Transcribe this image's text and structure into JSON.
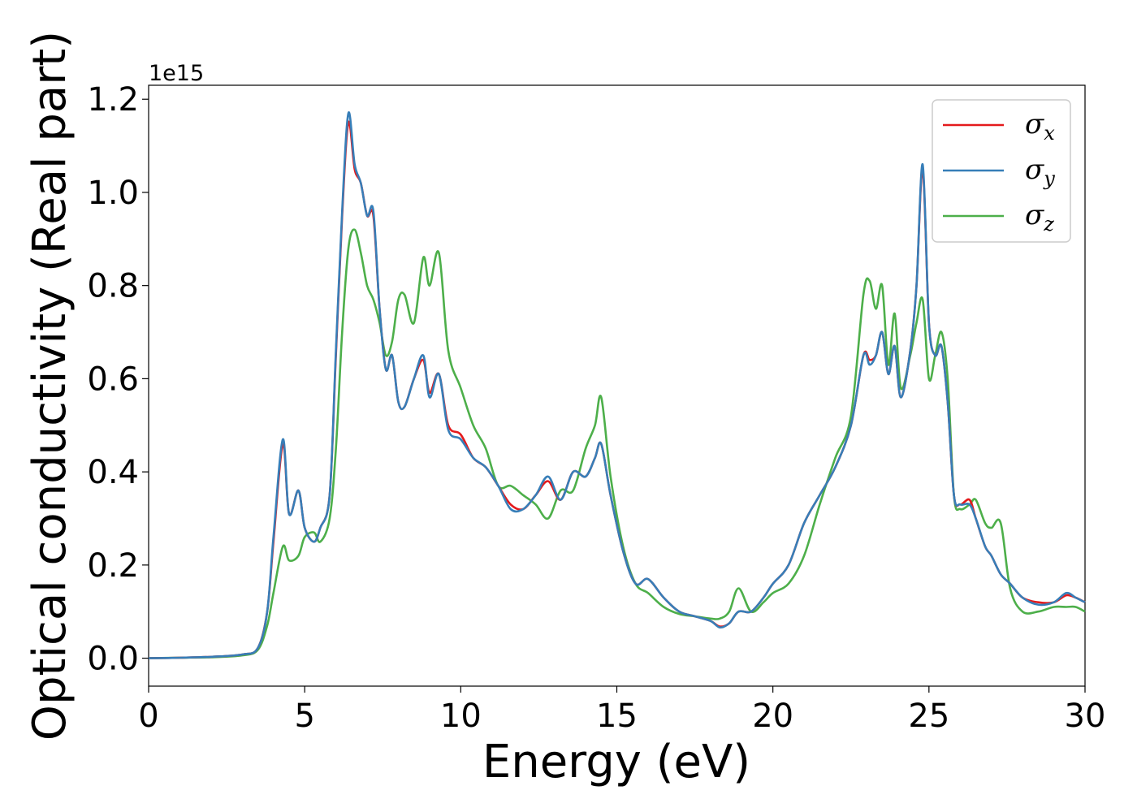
{
  "chart_data": {
    "type": "line",
    "xlabel": "Energy (eV)",
    "ylabel": "Optical conductivity (Real part)",
    "y_offset_label": "1e15",
    "xlim": [
      0,
      30
    ],
    "ylim": [
      -0.06,
      1.23
    ],
    "x_ticks": [
      0,
      5,
      10,
      15,
      20,
      25,
      30
    ],
    "y_ticks": [
      0.0,
      0.2,
      0.4,
      0.6,
      0.8,
      1.0,
      1.2
    ],
    "x_tick_labels": [
      "0",
      "5",
      "10",
      "15",
      "20",
      "25",
      "30"
    ],
    "y_tick_labels": [
      "0.0",
      "0.2",
      "0.4",
      "0.6",
      "0.8",
      "1.0",
      "1.2"
    ],
    "grid": false,
    "legend_position": "top-right",
    "x": [
      0,
      1,
      2,
      3,
      3.5,
      3.8,
      4.0,
      4.3,
      4.5,
      4.8,
      5.0,
      5.3,
      5.5,
      5.8,
      6.0,
      6.2,
      6.4,
      6.6,
      6.8,
      7.0,
      7.2,
      7.4,
      7.6,
      7.8,
      8.0,
      8.2,
      8.5,
      8.8,
      9.0,
      9.3,
      9.6,
      10.0,
      10.4,
      10.8,
      11.2,
      11.6,
      12.0,
      12.4,
      12.8,
      13.2,
      13.6,
      14.0,
      14.3,
      14.5,
      14.8,
      15.2,
      15.6,
      16.0,
      16.5,
      17.0,
      17.5,
      18.0,
      18.3,
      18.6,
      18.9,
      19.3,
      19.7,
      20.0,
      20.5,
      21.0,
      21.5,
      22.0,
      22.5,
      22.9,
      23.1,
      23.3,
      23.5,
      23.7,
      23.9,
      24.1,
      24.4,
      24.6,
      24.8,
      25.0,
      25.2,
      25.4,
      25.6,
      25.8,
      26.0,
      26.3,
      26.5,
      26.8,
      27.0,
      27.3,
      27.6,
      28.0,
      28.5,
      29.0,
      29.4,
      29.7,
      30.0
    ],
    "series": [
      {
        "name": "σx",
        "color": "#e41a1c",
        "values": [
          0.0,
          0.001,
          0.003,
          0.008,
          0.022,
          0.1,
          0.25,
          0.46,
          0.31,
          0.36,
          0.28,
          0.25,
          0.28,
          0.35,
          0.65,
          0.95,
          1.15,
          1.05,
          1.02,
          0.95,
          0.95,
          0.75,
          0.62,
          0.65,
          0.55,
          0.54,
          0.6,
          0.64,
          0.57,
          0.61,
          0.5,
          0.48,
          0.43,
          0.41,
          0.37,
          0.33,
          0.32,
          0.35,
          0.38,
          0.34,
          0.4,
          0.39,
          0.43,
          0.46,
          0.35,
          0.23,
          0.16,
          0.17,
          0.13,
          0.1,
          0.09,
          0.08,
          0.068,
          0.075,
          0.1,
          0.1,
          0.13,
          0.16,
          0.2,
          0.29,
          0.35,
          0.41,
          0.5,
          0.65,
          0.64,
          0.65,
          0.7,
          0.61,
          0.67,
          0.56,
          0.66,
          0.8,
          1.05,
          0.72,
          0.65,
          0.67,
          0.55,
          0.35,
          0.33,
          0.34,
          0.3,
          0.24,
          0.22,
          0.18,
          0.16,
          0.13,
          0.12,
          0.12,
          0.135,
          0.13,
          0.12
        ]
      },
      {
        "name": "σy",
        "color": "#377eb8",
        "values": [
          0.0,
          0.001,
          0.003,
          0.008,
          0.022,
          0.1,
          0.26,
          0.47,
          0.31,
          0.36,
          0.28,
          0.25,
          0.28,
          0.35,
          0.66,
          0.96,
          1.17,
          1.06,
          1.02,
          0.95,
          0.96,
          0.75,
          0.62,
          0.65,
          0.55,
          0.54,
          0.6,
          0.65,
          0.56,
          0.61,
          0.49,
          0.47,
          0.43,
          0.41,
          0.37,
          0.32,
          0.32,
          0.35,
          0.39,
          0.34,
          0.4,
          0.39,
          0.43,
          0.46,
          0.35,
          0.23,
          0.16,
          0.17,
          0.13,
          0.1,
          0.09,
          0.08,
          0.066,
          0.075,
          0.1,
          0.1,
          0.13,
          0.16,
          0.2,
          0.29,
          0.35,
          0.41,
          0.5,
          0.65,
          0.63,
          0.65,
          0.7,
          0.61,
          0.67,
          0.56,
          0.66,
          0.8,
          1.06,
          0.72,
          0.65,
          0.67,
          0.55,
          0.35,
          0.33,
          0.33,
          0.3,
          0.24,
          0.22,
          0.18,
          0.16,
          0.13,
          0.115,
          0.12,
          0.14,
          0.13,
          0.12
        ]
      },
      {
        "name": "σz",
        "color": "#4daf4a",
        "values": [
          0.0,
          0.001,
          0.002,
          0.006,
          0.018,
          0.07,
          0.14,
          0.24,
          0.21,
          0.22,
          0.26,
          0.27,
          0.25,
          0.3,
          0.45,
          0.7,
          0.88,
          0.92,
          0.87,
          0.8,
          0.77,
          0.72,
          0.65,
          0.68,
          0.77,
          0.78,
          0.72,
          0.86,
          0.8,
          0.87,
          0.66,
          0.58,
          0.5,
          0.45,
          0.37,
          0.37,
          0.35,
          0.33,
          0.3,
          0.36,
          0.36,
          0.45,
          0.5,
          0.56,
          0.39,
          0.24,
          0.16,
          0.14,
          0.11,
          0.095,
          0.09,
          0.085,
          0.085,
          0.1,
          0.15,
          0.1,
          0.12,
          0.14,
          0.16,
          0.22,
          0.33,
          0.43,
          0.52,
          0.78,
          0.81,
          0.75,
          0.8,
          0.63,
          0.74,
          0.58,
          0.65,
          0.72,
          0.77,
          0.6,
          0.65,
          0.7,
          0.6,
          0.35,
          0.32,
          0.33,
          0.34,
          0.29,
          0.28,
          0.29,
          0.15,
          0.1,
          0.1,
          0.11,
          0.11,
          0.11,
          0.1
        ]
      }
    ]
  }
}
